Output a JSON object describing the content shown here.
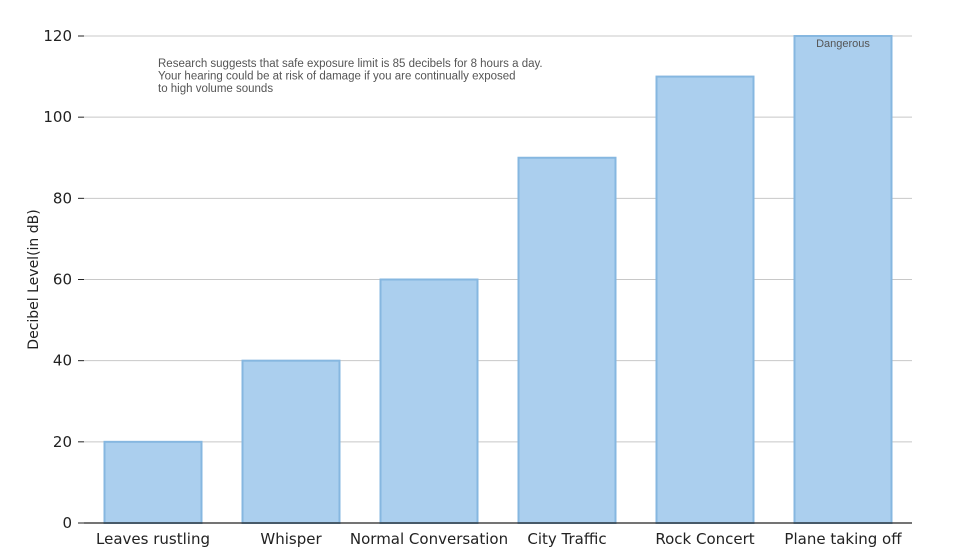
{
  "chart_data": {
    "type": "bar",
    "categories": [
      "Leaves rustling",
      "Whisper",
      "Normal Conversation",
      "City Traffic",
      "Rock Concert",
      "Plane taking off"
    ],
    "values": [
      20,
      40,
      60,
      90,
      110,
      120
    ],
    "ylabel": "Decibel Level(in dB)",
    "xlabel": "",
    "ylim": [
      0,
      120
    ],
    "yticks": [
      0,
      20,
      40,
      60,
      80,
      100,
      120
    ],
    "grid": true,
    "annotation": {
      "lines": [
        "Research suggests that safe exposure limit is 85 decibels for 8 hours a day.",
        "Your hearing could be at risk of damage if you are continually exposed",
        "to high volume sounds"
      ]
    },
    "data_labels": [
      {
        "category": "Plane taking off",
        "text": "Dangerous"
      }
    ],
    "colors": {
      "bar_fill": "#abcfee",
      "bar_stroke": "#86b7e0"
    }
  }
}
